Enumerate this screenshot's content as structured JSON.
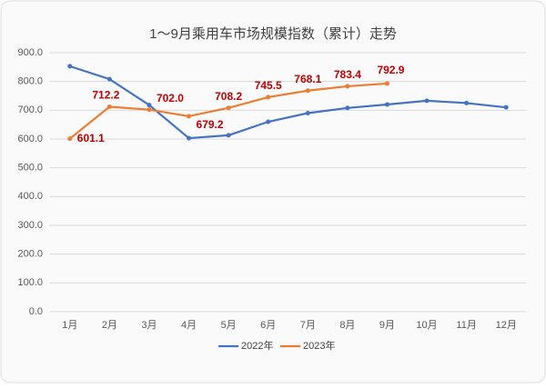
{
  "chart_data": {
    "type": "line",
    "title": "1～9月乘用车市场规模指数（累计）走势",
    "categories": [
      "1月",
      "2月",
      "3月",
      "4月",
      "5月",
      "6月",
      "7月",
      "8月",
      "9月",
      "10月",
      "11月",
      "12月"
    ],
    "series": [
      {
        "name": "2022年",
        "color": "#4472c4",
        "values": [
          853,
          808,
          718,
          603,
          613,
          660,
          690,
          708,
          720,
          733,
          725,
          710
        ]
      },
      {
        "name": "2023年",
        "color": "#ed7d31",
        "values": [
          601.1,
          712.2,
          702.0,
          679.2,
          708.2,
          745.5,
          768.1,
          783.4,
          792.9,
          null,
          null,
          null
        ],
        "value_labels": [
          "601.1",
          "712.2",
          "702.0",
          "679.2",
          "708.2",
          "745.5",
          "768.1",
          "783.4",
          "792.9",
          null,
          null,
          null
        ],
        "label_color": "#c00000"
      }
    ],
    "ylim": [
      0,
      900
    ],
    "yticks": [
      {
        "value": 0,
        "label": "0.0"
      },
      {
        "value": 100,
        "label": "100.0"
      },
      {
        "value": 200,
        "label": "200.0"
      },
      {
        "value": 300,
        "label": "300.0"
      },
      {
        "value": 400,
        "label": "400.0"
      },
      {
        "value": 500,
        "label": "500.0"
      },
      {
        "value": 600,
        "label": "600.0"
      },
      {
        "value": 700,
        "label": "700.0"
      },
      {
        "value": 800,
        "label": "800.0"
      },
      {
        "value": 900,
        "label": "900.0"
      }
    ],
    "grid": true,
    "legend": "bottom"
  }
}
